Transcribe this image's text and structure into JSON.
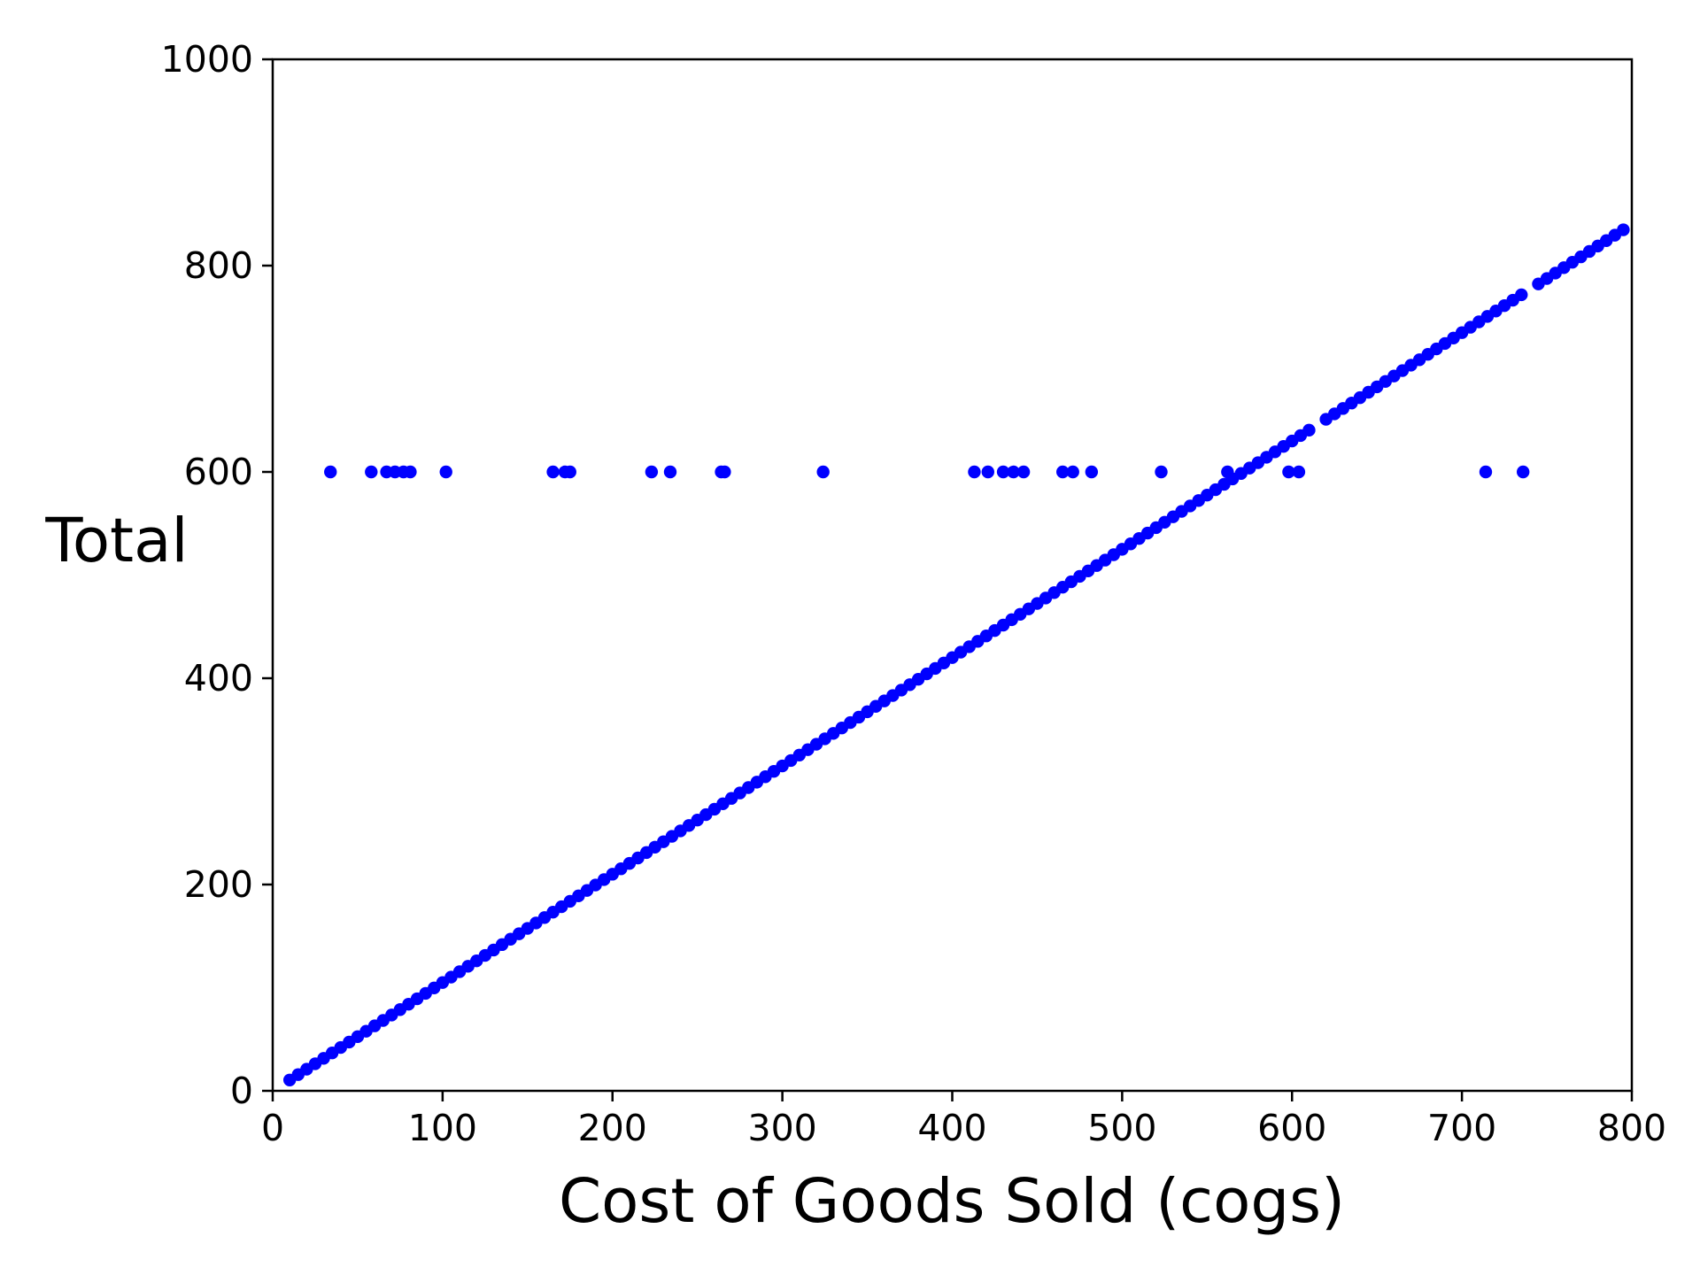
{
  "chart_data": {
    "type": "scatter",
    "title": "",
    "xlabel": "Cost of Goods Sold (cogs)",
    "ylabel": "Total",
    "xlim": [
      0,
      800
    ],
    "ylim": [
      0,
      1000
    ],
    "xticks": [
      0,
      100,
      200,
      300,
      400,
      500,
      600,
      700,
      800
    ],
    "yticks": [
      0,
      200,
      400,
      600,
      800,
      1000
    ],
    "grid": false,
    "legend": "none",
    "marker_color": "#0000ff",
    "series": [
      {
        "points": [
          [
            10,
            10.5
          ],
          [
            15,
            15.75
          ],
          [
            20,
            21
          ],
          [
            25,
            26.25
          ],
          [
            30,
            31.5
          ],
          [
            35,
            36.75
          ],
          [
            40,
            42
          ],
          [
            45,
            47.25
          ],
          [
            50,
            52.5
          ],
          [
            55,
            57.75
          ],
          [
            60,
            63
          ],
          [
            65,
            68.25
          ],
          [
            70,
            73.5
          ],
          [
            75,
            78.75
          ],
          [
            80,
            84
          ],
          [
            85,
            89.25
          ],
          [
            90,
            94.5
          ],
          [
            95,
            99.75
          ],
          [
            100,
            105
          ],
          [
            105,
            110.25
          ],
          [
            110,
            115.5
          ],
          [
            115,
            120.75
          ],
          [
            120,
            126
          ],
          [
            125,
            131.25
          ],
          [
            130,
            136.5
          ],
          [
            135,
            141.75
          ],
          [
            140,
            147
          ],
          [
            145,
            152.25
          ],
          [
            150,
            157.5
          ],
          [
            155,
            162.75
          ],
          [
            160,
            168
          ],
          [
            165,
            173.25
          ],
          [
            170,
            178.5
          ],
          [
            175,
            183.75
          ],
          [
            180,
            189
          ],
          [
            185,
            194.25
          ],
          [
            190,
            199.5
          ],
          [
            195,
            204.75
          ],
          [
            200,
            210
          ],
          [
            205,
            215.25
          ],
          [
            210,
            220.5
          ],
          [
            215,
            225.75
          ],
          [
            220,
            231
          ],
          [
            225,
            236.25
          ],
          [
            230,
            241.5
          ],
          [
            235,
            246.75
          ],
          [
            240,
            252
          ],
          [
            245,
            257.25
          ],
          [
            250,
            262.5
          ],
          [
            255,
            267.75
          ],
          [
            260,
            273
          ],
          [
            265,
            278.25
          ],
          [
            270,
            283.5
          ],
          [
            275,
            288.75
          ],
          [
            280,
            294
          ],
          [
            285,
            299.25
          ],
          [
            290,
            304.5
          ],
          [
            295,
            309.75
          ],
          [
            300,
            315
          ],
          [
            305,
            320.25
          ],
          [
            310,
            325.5
          ],
          [
            315,
            330.75
          ],
          [
            320,
            336
          ],
          [
            325,
            341.25
          ],
          [
            330,
            346.5
          ],
          [
            335,
            351.75
          ],
          [
            340,
            357
          ],
          [
            345,
            362.25
          ],
          [
            350,
            367.5
          ],
          [
            355,
            372.75
          ],
          [
            360,
            378
          ],
          [
            365,
            383.25
          ],
          [
            370,
            388.5
          ],
          [
            375,
            393.75
          ],
          [
            380,
            399
          ],
          [
            385,
            404.25
          ],
          [
            390,
            409.5
          ],
          [
            395,
            414.75
          ],
          [
            400,
            420
          ],
          [
            405,
            425.25
          ],
          [
            410,
            430.5
          ],
          [
            415,
            435.75
          ],
          [
            420,
            441
          ],
          [
            425,
            446.25
          ],
          [
            430,
            451.5
          ],
          [
            435,
            456.75
          ],
          [
            440,
            462
          ],
          [
            445,
            467.25
          ],
          [
            450,
            472.5
          ],
          [
            455,
            477.75
          ],
          [
            460,
            483
          ],
          [
            465,
            488.25
          ],
          [
            470,
            493.5
          ],
          [
            475,
            498.75
          ],
          [
            480,
            504
          ],
          [
            485,
            509.25
          ],
          [
            490,
            514.5
          ],
          [
            495,
            519.75
          ],
          [
            500,
            525
          ],
          [
            505,
            530.25
          ],
          [
            510,
            535.5
          ],
          [
            515,
            540.75
          ],
          [
            520,
            546
          ],
          [
            525,
            551.25
          ],
          [
            530,
            556.5
          ],
          [
            535,
            561.75
          ],
          [
            540,
            567
          ],
          [
            545,
            572.25
          ],
          [
            550,
            577.5
          ],
          [
            555,
            582.75
          ],
          [
            560,
            588
          ],
          [
            565,
            593.25
          ],
          [
            570,
            598.5
          ],
          [
            575,
            603.75
          ],
          [
            580,
            609
          ],
          [
            585,
            614.25
          ],
          [
            590,
            619.5
          ],
          [
            595,
            624.75
          ],
          [
            600,
            630
          ],
          [
            605,
            635.25
          ],
          [
            610,
            640.5
          ],
          [
            620,
            651
          ],
          [
            625,
            656.25
          ],
          [
            630,
            661.5
          ],
          [
            635,
            666.75
          ],
          [
            640,
            672
          ],
          [
            645,
            677.25
          ],
          [
            650,
            682.5
          ],
          [
            655,
            687.75
          ],
          [
            660,
            693
          ],
          [
            665,
            698.25
          ],
          [
            670,
            703.5
          ],
          [
            675,
            708.75
          ],
          [
            680,
            714
          ],
          [
            685,
            719.25
          ],
          [
            690,
            724.5
          ],
          [
            695,
            729.75
          ],
          [
            700,
            735
          ],
          [
            705,
            740.25
          ],
          [
            710,
            745.5
          ],
          [
            715,
            750.75
          ],
          [
            720,
            756
          ],
          [
            725,
            761.25
          ],
          [
            730,
            766.5
          ],
          [
            735,
            771.75
          ],
          [
            745,
            782.25
          ],
          [
            750,
            787.5
          ],
          [
            755,
            792.75
          ],
          [
            760,
            798
          ],
          [
            765,
            803.25
          ],
          [
            770,
            808.5
          ],
          [
            775,
            813.75
          ],
          [
            780,
            819
          ],
          [
            785,
            824.25
          ],
          [
            790,
            829.5
          ],
          [
            795,
            834.75
          ],
          [
            34,
            600
          ],
          [
            58,
            600
          ],
          [
            67,
            600
          ],
          [
            72,
            600
          ],
          [
            77,
            600
          ],
          [
            81,
            600
          ],
          [
            102,
            600
          ],
          [
            165,
            600
          ],
          [
            172,
            600
          ],
          [
            175,
            600
          ],
          [
            223,
            600
          ],
          [
            234,
            600
          ],
          [
            264,
            600
          ],
          [
            266,
            600
          ],
          [
            324,
            600
          ],
          [
            413,
            600
          ],
          [
            421,
            600
          ],
          [
            430,
            600
          ],
          [
            436,
            600
          ],
          [
            442,
            600
          ],
          [
            465,
            600
          ],
          [
            471,
            600
          ],
          [
            482,
            600
          ],
          [
            523,
            600
          ],
          [
            562,
            600
          ],
          [
            598,
            600
          ],
          [
            604,
            600
          ],
          [
            714,
            600
          ],
          [
            736,
            600
          ]
        ]
      }
    ]
  }
}
